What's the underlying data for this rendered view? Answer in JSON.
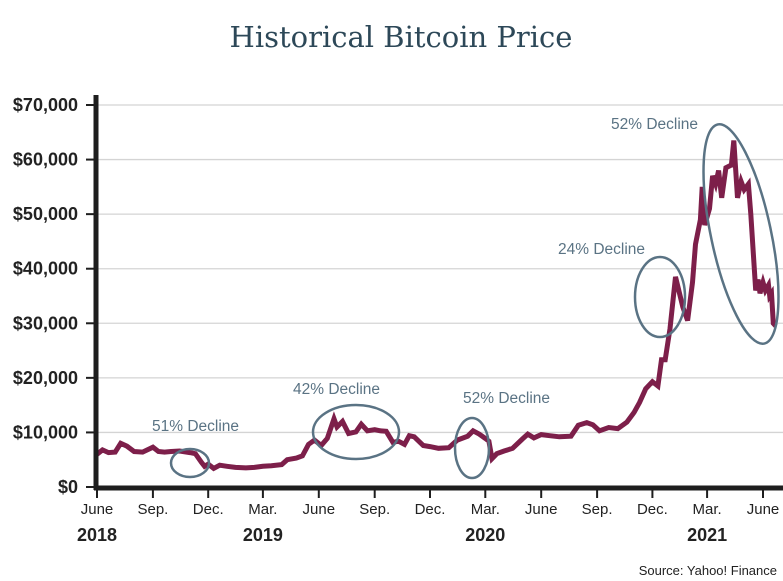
{
  "chart_data": {
    "type": "line",
    "title": "Historical Bitcoin Price",
    "source": "Source: Yahoo! Finance",
    "xlabel": "",
    "ylabel": "",
    "ylim": [
      0,
      70000
    ],
    "y_ticks": [
      "$0",
      "$10,000",
      "$20,000",
      "$30,000",
      "$40,000",
      "$50,000",
      "$60,000",
      "$70,000"
    ],
    "x_ticks": [
      {
        "label": "June",
        "year": "2018",
        "date": "2018-06-01"
      },
      {
        "label": "Sep.",
        "year": "",
        "date": "2018-09-01"
      },
      {
        "label": "Dec.",
        "year": "",
        "date": "2018-12-01"
      },
      {
        "label": "Mar.",
        "year": "2019",
        "date": "2019-03-01"
      },
      {
        "label": "June",
        "year": "",
        "date": "2019-06-01"
      },
      {
        "label": "Sep.",
        "year": "",
        "date": "2019-09-01"
      },
      {
        "label": "Dec.",
        "year": "",
        "date": "2019-12-01"
      },
      {
        "label": "Mar.",
        "year": "2020",
        "date": "2020-03-01"
      },
      {
        "label": "June",
        "year": "",
        "date": "2020-06-01"
      },
      {
        "label": "Sep.",
        "year": "",
        "date": "2020-09-01"
      },
      {
        "label": "Dec.",
        "year": "",
        "date": "2020-12-01"
      },
      {
        "label": "Mar.",
        "year": "2021",
        "date": "2021-03-01"
      },
      {
        "label": "June",
        "year": "",
        "date": "2021-06-01"
      }
    ],
    "grid": true,
    "line_color": "#7d1f4a",
    "annotation_color": "#5a7384",
    "annotations": [
      "51% Decline",
      "42% Decline",
      "52% Decline",
      "24% Decline",
      "52% Decline"
    ],
    "series": [
      {
        "points": [
          [
            "2018-06-01",
            6000
          ],
          [
            "2018-06-10",
            6800
          ],
          [
            "2018-06-20",
            6300
          ],
          [
            "2018-07-01",
            6400
          ],
          [
            "2018-07-10",
            8000
          ],
          [
            "2018-07-20",
            7500
          ],
          [
            "2018-08-01",
            6500
          ],
          [
            "2018-08-15",
            6400
          ],
          [
            "2018-09-01",
            7300
          ],
          [
            "2018-09-10",
            6500
          ],
          [
            "2018-09-20",
            6400
          ],
          [
            "2018-10-01",
            6500
          ],
          [
            "2018-10-15",
            6600
          ],
          [
            "2018-11-01",
            6300
          ],
          [
            "2018-11-10",
            6100
          ],
          [
            "2018-11-20",
            4500
          ],
          [
            "2018-11-25",
            3800
          ],
          [
            "2018-12-01",
            4200
          ],
          [
            "2018-12-10",
            3400
          ],
          [
            "2018-12-20",
            4000
          ],
          [
            "2019-01-01",
            3800
          ],
          [
            "2019-01-15",
            3600
          ],
          [
            "2019-02-01",
            3500
          ],
          [
            "2019-02-15",
            3600
          ],
          [
            "2019-03-01",
            3800
          ],
          [
            "2019-03-15",
            3900
          ],
          [
            "2019-04-01",
            4100
          ],
          [
            "2019-04-10",
            5000
          ],
          [
            "2019-04-25",
            5300
          ],
          [
            "2019-05-05",
            5700
          ],
          [
            "2019-05-15",
            7800
          ],
          [
            "2019-05-25",
            8600
          ],
          [
            "2019-06-05",
            7600
          ],
          [
            "2019-06-15",
            8900
          ],
          [
            "2019-06-26",
            12500
          ],
          [
            "2019-07-01",
            11000
          ],
          [
            "2019-07-10",
            12000
          ],
          [
            "2019-07-20",
            9800
          ],
          [
            "2019-08-01",
            10100
          ],
          [
            "2019-08-10",
            11500
          ],
          [
            "2019-08-20",
            10300
          ],
          [
            "2019-09-01",
            10500
          ],
          [
            "2019-09-10",
            10300
          ],
          [
            "2019-09-20",
            10200
          ],
          [
            "2019-10-01",
            8200
          ],
          [
            "2019-10-10",
            8400
          ],
          [
            "2019-10-20",
            7800
          ],
          [
            "2019-10-28",
            9400
          ],
          [
            "2019-11-05",
            9200
          ],
          [
            "2019-11-20",
            7600
          ],
          [
            "2019-12-01",
            7400
          ],
          [
            "2019-12-15",
            7100
          ],
          [
            "2020-01-01",
            7200
          ],
          [
            "2020-01-15",
            8600
          ],
          [
            "2020-02-01",
            9300
          ],
          [
            "2020-02-10",
            10300
          ],
          [
            "2020-02-20",
            9700
          ],
          [
            "2020-03-01",
            8900
          ],
          [
            "2020-03-07",
            8400
          ],
          [
            "2020-03-12",
            5200
          ],
          [
            "2020-03-20",
            6100
          ],
          [
            "2020-04-01",
            6600
          ],
          [
            "2020-04-15",
            7100
          ],
          [
            "2020-05-01",
            8800
          ],
          [
            "2020-05-10",
            9700
          ],
          [
            "2020-05-20",
            9000
          ],
          [
            "2020-06-01",
            9600
          ],
          [
            "2020-06-15",
            9400
          ],
          [
            "2020-07-01",
            9200
          ],
          [
            "2020-07-20",
            9300
          ],
          [
            "2020-08-01",
            11300
          ],
          [
            "2020-08-15",
            11800
          ],
          [
            "2020-08-25",
            11400
          ],
          [
            "2020-09-05",
            10300
          ],
          [
            "2020-09-20",
            10900
          ],
          [
            "2020-10-05",
            10700
          ],
          [
            "2020-10-20",
            11900
          ],
          [
            "2020-11-01",
            13700
          ],
          [
            "2020-11-10",
            15500
          ],
          [
            "2020-11-20",
            18000
          ],
          [
            "2020-12-01",
            19300
          ],
          [
            "2020-12-10",
            18500
          ],
          [
            "2020-12-16",
            23300
          ],
          [
            "2020-12-22",
            23300
          ],
          [
            "2020-12-30",
            29000
          ],
          [
            "2021-01-08",
            38500
          ],
          [
            "2021-01-20",
            33000
          ],
          [
            "2021-01-28",
            30500
          ],
          [
            "2021-02-05",
            37500
          ],
          [
            "2021-02-10",
            44500
          ],
          [
            "2021-02-18",
            49000
          ],
          [
            "2021-02-21",
            55000
          ],
          [
            "2021-02-25",
            48000
          ],
          [
            "2021-03-05",
            51000
          ],
          [
            "2021-03-10",
            57000
          ],
          [
            "2021-03-15",
            55500
          ],
          [
            "2021-03-20",
            58000
          ],
          [
            "2021-03-25",
            53000
          ],
          [
            "2021-04-01",
            58500
          ],
          [
            "2021-04-10",
            59000
          ],
          [
            "2021-04-14",
            63500
          ],
          [
            "2021-04-20",
            53000
          ],
          [
            "2021-04-26",
            56000
          ],
          [
            "2021-05-01",
            54500
          ],
          [
            "2021-05-08",
            55500
          ],
          [
            "2021-05-12",
            50000
          ],
          [
            "2021-05-20",
            36000
          ],
          [
            "2021-05-24",
            38000
          ],
          [
            "2021-05-27",
            35500
          ],
          [
            "2021-06-01",
            37500
          ],
          [
            "2021-06-05",
            36000
          ],
          [
            "2021-06-10",
            37000
          ],
          [
            "2021-06-12",
            35000
          ],
          [
            "2021-06-15",
            35500
          ],
          [
            "2021-06-18",
            30000
          ],
          [
            "2021-06-22",
            29500
          ]
        ]
      }
    ]
  }
}
